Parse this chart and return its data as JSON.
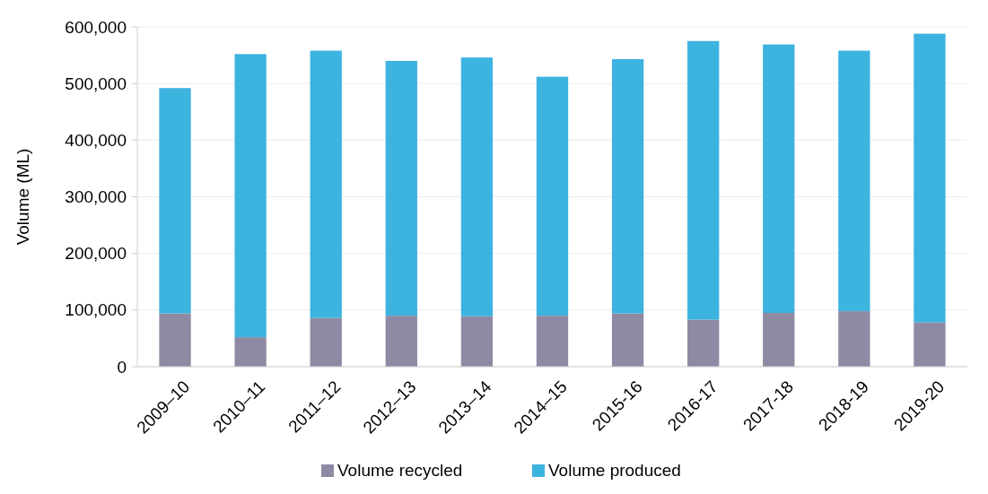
{
  "chart_data": {
    "type": "bar",
    "stacked": true,
    "ylabel": "Volume (ML)",
    "categories": [
      "2009–10",
      "2010–11",
      "2011–12",
      "2012–13",
      "2013–14",
      "2014–15",
      "2015-16",
      "2016-17",
      "2017-18",
      "2018-19",
      "2019-20"
    ],
    "series": [
      {
        "name": "Volume recycled",
        "color": "#8f8aa3",
        "values": [
          94000,
          52000,
          86000,
          90000,
          89000,
          90000,
          94000,
          83000,
          95000,
          98000,
          78000
        ]
      },
      {
        "name": "Volume produced",
        "color": "#3db3e0",
        "values": [
          398000,
          500000,
          472000,
          450000,
          457000,
          422000,
          449000,
          492000,
          474000,
          460000,
          510000
        ]
      }
    ],
    "ylim": [
      0,
      600000
    ],
    "yticks": [
      {
        "value": 0,
        "label": "0"
      },
      {
        "value": 100000,
        "label": "100,000"
      },
      {
        "value": 200000,
        "label": "200,000"
      },
      {
        "value": 300000,
        "label": "300,000"
      },
      {
        "value": 400000,
        "label": "400,000"
      },
      {
        "value": 500000,
        "label": "500,000"
      },
      {
        "value": 600000,
        "label": "600,000"
      }
    ],
    "grid": "y",
    "legend": "bottom"
  }
}
